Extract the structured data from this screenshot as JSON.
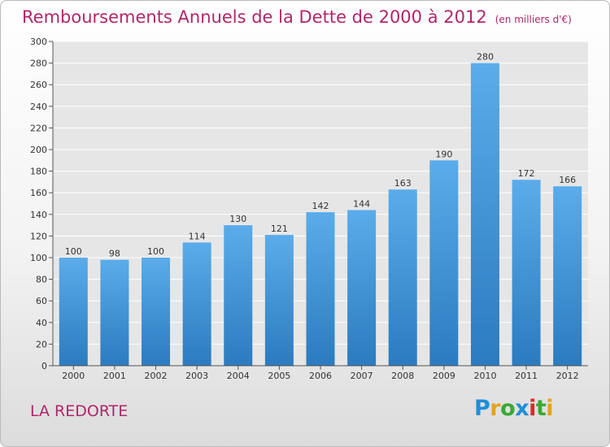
{
  "header": {
    "title": "Remboursements Annuels de la Dette de 2000 à 2012",
    "unit": "(en milliers d'€)"
  },
  "footer": {
    "commune": "LA REDORTE",
    "logo_text": "Proxiti"
  },
  "colors": {
    "title": "#b0266a",
    "bar_top": "#5aacea",
    "bar_bottom": "#2b7bbf",
    "grid": "#ffffff",
    "axis": "#555555"
  },
  "chart_data": {
    "type": "bar",
    "title": "Remboursements Annuels de la Dette de 2000 à 2012",
    "xlabel": "",
    "ylabel": "(en milliers d'€)",
    "categories": [
      "2000",
      "2001",
      "2002",
      "2003",
      "2004",
      "2005",
      "2006",
      "2007",
      "2008",
      "2009",
      "2010",
      "2011",
      "2012"
    ],
    "values": [
      100,
      98,
      100,
      114,
      130,
      121,
      142,
      144,
      163,
      190,
      280,
      172,
      166
    ],
    "ylim": [
      0,
      300
    ],
    "yticks": [
      0,
      20,
      40,
      60,
      80,
      100,
      120,
      140,
      160,
      180,
      200,
      220,
      240,
      260,
      280,
      300
    ],
    "grid": true,
    "data_labels": true
  }
}
